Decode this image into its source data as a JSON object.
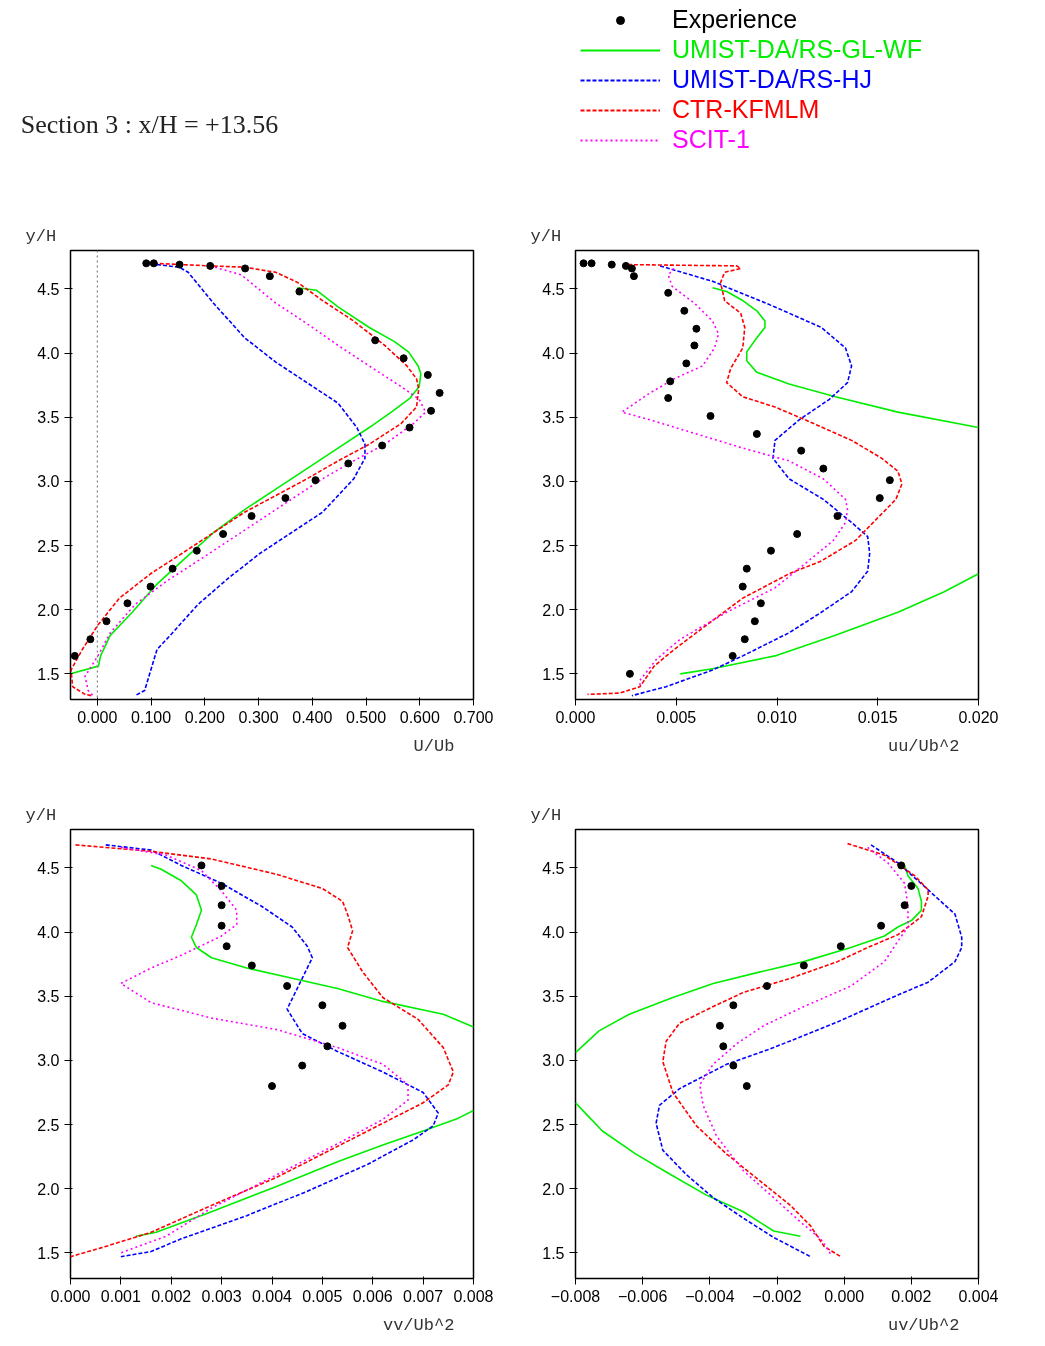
{
  "chart_data": [
    {
      "type": "line",
      "title": "Section 3 : x/H = +13.56",
      "legend": "top right",
      "ylabel": "y/H",
      "xlabel": "U/Ub",
      "xlim": [
        -0.05,
        0.7
      ],
      "ylim": [
        1.3,
        4.8
      ],
      "xticks": [
        {
          "value": 0,
          "label": "0.000"
        },
        {
          "value": 0.1,
          "label": "0.100"
        },
        {
          "value": 0.2,
          "label": "0.200"
        },
        {
          "value": 0.3,
          "label": "0.300"
        },
        {
          "value": 0.4,
          "label": "0.400"
        },
        {
          "value": 0.5,
          "label": "0.500"
        },
        {
          "value": 0.6,
          "label": "0.600"
        },
        {
          "value": 0.7,
          "label": "0.700"
        }
      ],
      "yticks": [
        1.5,
        {
          "value": 2,
          "label": "2.0"
        },
        2.5,
        {
          "value": 3,
          "label": "3.0"
        },
        3.5,
        {
          "value": 4,
          "label": "4.0"
        },
        4.5
      ],
      "ref_lines": [
        {
          "axis": "x",
          "value": 0,
          "color": "#808080",
          "line_style": "dotted"
        }
      ],
      "series": [
        {
          "name": "Experience",
          "type": "scatter",
          "marker": "circle",
          "color": "#000000",
          "x": [
            0.091,
            0.105,
            0.153,
            0.21,
            0.275,
            0.321,
            0.376,
            0.517,
            0.57,
            0.615,
            0.637,
            0.621,
            0.581,
            0.53,
            0.467,
            0.406,
            0.35,
            0.287,
            0.234,
            0.185,
            0.14,
            0.099,
            0.056,
            0.017,
            -0.013,
            -0.042
          ],
          "values": [
            4.7,
            4.7,
            4.69,
            4.68,
            4.66,
            4.6,
            4.48,
            4.1,
            3.96,
            3.83,
            3.69,
            3.55,
            3.42,
            3.28,
            3.14,
            3.01,
            2.87,
            2.73,
            2.59,
            2.46,
            2.32,
            2.18,
            2.05,
            1.91,
            1.77,
            1.64
          ]
        },
        {
          "name": "UMIST-DA/RS-GL-WF",
          "color": "#00ee00",
          "line_style": "solid",
          "x": [
            0.372,
            0.408,
            0.448,
            0.506,
            0.553,
            0.579,
            0.597,
            0.602,
            0.599,
            0.582,
            0.547,
            0.506,
            0.448,
            0.39,
            0.332,
            0.274,
            0.216,
            0.158,
            0.111,
            0.065,
            0.024,
            0.006,
            0.002,
            -0.05
          ],
          "values": [
            4.51,
            4.49,
            4.36,
            4.2,
            4.09,
            4.01,
            3.9,
            3.84,
            3.74,
            3.65,
            3.54,
            3.42,
            3.26,
            3.1,
            2.94,
            2.78,
            2.6,
            2.38,
            2.2,
            1.98,
            1.8,
            1.64,
            1.56,
            1.5
          ]
        },
        {
          "name": "UMIST-DA/RS-HJ",
          "color": "#0000ff",
          "line_style": "dashed",
          "x": [
            0.111,
            0.152,
            0.169,
            0.216,
            0.274,
            0.332,
            0.39,
            0.448,
            0.483,
            0.498,
            0.498,
            0.477,
            0.419,
            0.361,
            0.303,
            0.245,
            0.187,
            0.14,
            0.111,
            0.088,
            0.07
          ],
          "values": [
            4.69,
            4.67,
            4.63,
            4.39,
            4.12,
            3.93,
            3.77,
            3.61,
            3.42,
            3.29,
            3.18,
            3.02,
            2.76,
            2.6,
            2.44,
            2.25,
            2.04,
            1.82,
            1.69,
            1.37,
            1.33
          ]
        },
        {
          "name": "CTR-KFMLM",
          "color": "#ff0000",
          "line_style": "dashed",
          "x": [
            0.105,
            0.21,
            0.274,
            0.332,
            0.373,
            0.419,
            0.477,
            0.535,
            0.576,
            0.594,
            0.598,
            0.594,
            0.565,
            0.506,
            0.448,
            0.39,
            0.332,
            0.274,
            0.216,
            0.158,
            0.099,
            0.041,
            0.001,
            -0.028,
            -0.049,
            -0.046,
            -0.023,
            -0.011
          ],
          "values": [
            4.7,
            4.68,
            4.67,
            4.63,
            4.55,
            4.41,
            4.25,
            4.06,
            3.9,
            3.8,
            3.72,
            3.58,
            3.45,
            3.29,
            3.16,
            3.02,
            2.89,
            2.76,
            2.6,
            2.44,
            2.28,
            2.09,
            1.88,
            1.69,
            1.53,
            1.4,
            1.34,
            1.33
          ]
        },
        {
          "name": "SCIT-1",
          "color": "#ff00ff",
          "line_style": "dotted",
          "x": [
            0.21,
            0.268,
            0.332,
            0.39,
            0.448,
            0.506,
            0.565,
            0.599,
            0.611,
            0.588,
            0.535,
            0.477,
            0.419,
            0.361,
            0.303,
            0.245,
            0.187,
            0.128,
            0.07,
            0.024,
            0.001,
            -0.023,
            -0.017,
            -0.008
          ],
          "values": [
            4.68,
            4.61,
            4.39,
            4.23,
            4.06,
            3.9,
            3.74,
            3.64,
            3.54,
            3.45,
            3.29,
            3.16,
            3.02,
            2.86,
            2.7,
            2.54,
            2.38,
            2.22,
            2.04,
            1.82,
            1.64,
            1.48,
            1.37,
            1.33
          ]
        }
      ]
    },
    {
      "type": "line",
      "ylabel": "y/H",
      "xlabel": "uu/Ub^2",
      "xlim": [
        0,
        0.02
      ],
      "ylim": [
        1.3,
        4.8
      ],
      "xticks": [
        {
          "value": 0,
          "label": "0.000"
        },
        {
          "value": 0.005,
          "label": "0.005"
        },
        {
          "value": 0.01,
          "label": "0.010"
        },
        {
          "value": 0.015,
          "label": "0.015"
        },
        {
          "value": 0.02,
          "label": "0.020"
        }
      ],
      "yticks": [
        1.5,
        {
          "value": 2,
          "label": "2.0"
        },
        2.5,
        {
          "value": 3,
          "label": "3.0"
        },
        3.5,
        {
          "value": 4,
          "label": "4.0"
        },
        4.5
      ],
      "series": [
        {
          "type": "scatter",
          "marker": "circle",
          "color": "#000000",
          "x": [
            0.0004,
            0.0008,
            0.0018,
            0.0025,
            0.0028,
            0.0029,
            0.0046,
            0.0054,
            0.006,
            0.0059,
            0.0055,
            0.0047,
            0.0046,
            0.0067,
            0.009,
            0.0112,
            0.0123,
            0.0156,
            0.0151,
            0.013,
            0.011,
            0.0097,
            0.0085,
            0.0083,
            0.0092,
            0.0089,
            0.0084,
            0.0078,
            0.0027
          ],
          "values": [
            4.7,
            4.7,
            4.69,
            4.68,
            4.66,
            4.6,
            4.47,
            4.33,
            4.19,
            4.06,
            3.92,
            3.78,
            3.65,
            3.51,
            3.37,
            3.24,
            3.1,
            3.01,
            2.87,
            2.73,
            2.59,
            2.46,
            2.32,
            2.18,
            2.05,
            1.91,
            1.77,
            1.64,
            1.5
          ]
        },
        {
          "color": "#00ee00",
          "line_style": "solid",
          "x": [
            0.0068,
            0.0075,
            0.0083,
            0.009,
            0.0094,
            0.0094,
            0.009,
            0.0085,
            0.0085,
            0.009,
            0.0106,
            0.0129,
            0.016,
            0.02,
            null,
            0.02,
            0.0183,
            0.016,
            0.0129,
            0.0099,
            0.0068,
            0.0052
          ],
          "values": [
            4.51,
            4.48,
            4.41,
            4.33,
            4.25,
            4.2,
            4.12,
            4.01,
            3.94,
            3.85,
            3.76,
            3.66,
            3.54,
            3.42,
            null,
            2.28,
            2.14,
            1.98,
            1.8,
            1.64,
            1.54,
            1.5
          ]
        },
        {
          "color": "#0000ff",
          "line_style": "dashed",
          "x": [
            0.0042,
            0.0068,
            0.0099,
            0.0122,
            0.0134,
            0.0137,
            0.0135,
            0.0126,
            0.0111,
            0.0099,
            0.0098,
            0.0106,
            0.0123,
            0.0137,
            0.0145,
            0.0146,
            0.0145,
            0.0137,
            0.0122,
            0.0106,
            0.0083,
            0.0068,
            0.0045,
            0.0028
          ],
          "values": [
            4.68,
            4.56,
            4.36,
            4.2,
            4.04,
            3.9,
            3.77,
            3.64,
            3.48,
            3.32,
            3.18,
            3.02,
            2.86,
            2.68,
            2.57,
            2.44,
            2.3,
            2.14,
            1.98,
            1.82,
            1.64,
            1.53,
            1.4,
            1.33
          ]
        },
        {
          "color": "#ff0000",
          "line_style": "dashed",
          "x": [
            0.0026,
            0.008,
            0.0082,
            0.0074,
            0.0072,
            0.0074,
            0.0082,
            0.0084,
            0.0083,
            0.0077,
            0.0075,
            0.0083,
            0.0099,
            0.0114,
            0.0137,
            0.0152,
            0.016,
            0.0162,
            0.0159,
            0.0149,
            0.0139,
            0.0122,
            0.0106,
            0.0083,
            0.0065,
            0.0049,
            0.0039,
            0.0032,
            0.0022,
            0.0006
          ],
          "values": [
            4.69,
            4.68,
            4.66,
            4.63,
            4.55,
            4.41,
            4.31,
            4.2,
            4.04,
            3.88,
            3.77,
            3.66,
            3.58,
            3.48,
            3.32,
            3.18,
            3.08,
            2.98,
            2.86,
            2.7,
            2.54,
            2.38,
            2.28,
            2.09,
            1.88,
            1.69,
            1.56,
            1.4,
            1.35,
            1.34
          ]
        },
        {
          "color": "#ff00ff",
          "line_style": "dotted",
          "x": [
            0.0049,
            0.0046,
            0.0048,
            0.0059,
            0.0068,
            0.0071,
            0.0069,
            0.0063,
            0.0049,
            0.0037,
            0.0023,
            0.0037,
            0.006,
            0.0083,
            0.0106,
            0.0123,
            0.0134,
            0.0135,
            0.0134,
            0.0128,
            0.0114,
            0.0099,
            0.0075,
            0.0052,
            0.004,
            0.0032,
            0.0032
          ],
          "values": [
            4.66,
            4.61,
            4.52,
            4.39,
            4.25,
            4.15,
            4.04,
            3.9,
            3.8,
            3.69,
            3.54,
            3.48,
            3.37,
            3.26,
            3.16,
            3.02,
            2.86,
            2.78,
            2.68,
            2.54,
            2.36,
            2.17,
            1.98,
            1.77,
            1.61,
            1.45,
            1.4
          ]
        }
      ]
    },
    {
      "type": "line",
      "ylabel": "y/H",
      "xlabel": "vv/Ub^2",
      "xlim": [
        0,
        0.008
      ],
      "ylim": [
        1.3,
        4.8
      ],
      "xticks": [
        {
          "value": 0,
          "label": "0.000"
        },
        {
          "value": 0.001,
          "label": "0.001"
        },
        {
          "value": 0.002,
          "label": "0.002"
        },
        {
          "value": 0.003,
          "label": "0.003"
        },
        {
          "value": 0.004,
          "label": "0.004"
        },
        {
          "value": 0.005,
          "label": "0.005"
        },
        {
          "value": 0.006,
          "label": "0.006"
        },
        {
          "value": 0.007,
          "label": "0.007"
        },
        {
          "value": 0.008,
          "label": "0.008"
        }
      ],
      "yticks": [
        1.5,
        {
          "value": 2,
          "label": "2.0"
        },
        2.5,
        {
          "value": 3,
          "label": "3.0"
        },
        3.5,
        {
          "value": 4,
          "label": "4.0"
        },
        4.5
      ],
      "series": [
        {
          "type": "scatter",
          "marker": "circle",
          "color": "#000000",
          "x": [
            0.0026,
            0.003,
            0.003,
            0.003,
            0.0031,
            0.0036,
            0.0043,
            0.005,
            0.0054,
            0.0051,
            0.0046,
            0.004
          ],
          "values": [
            4.52,
            4.36,
            4.21,
            4.05,
            3.89,
            3.74,
            3.58,
            3.43,
            3.27,
            3.11,
            2.96,
            2.8
          ]
        },
        {
          "color": "#00ee00",
          "line_style": "solid",
          "x": [
            0.0016,
            0.0018,
            0.0022,
            0.0025,
            0.0026,
            0.0025,
            0.0024,
            0.0025,
            0.0028,
            0.0035,
            0.0044,
            0.0053,
            0.0062,
            0.0074,
            0.008,
            null,
            0.008,
            0.0077,
            0.007,
            0.0062,
            0.0053,
            0.0041,
            0.0028,
            0.0017,
            0.0013
          ],
          "values": [
            4.52,
            4.49,
            4.4,
            4.29,
            4.17,
            4.06,
            3.96,
            3.88,
            3.8,
            3.72,
            3.64,
            3.56,
            3.46,
            3.36,
            3.26,
            null,
            2.61,
            2.55,
            2.45,
            2.34,
            2.21,
            2.02,
            1.82,
            1.66,
            1.63
          ]
        },
        {
          "color": "#0000ff",
          "line_style": "dashed",
          "x": [
            0.0007,
            0.0016,
            0.0022,
            0.003,
            0.0038,
            0.0044,
            0.0047,
            0.0048,
            0.0046,
            0.0043,
            0.0046,
            0.0053,
            0.0062,
            0.007,
            0.0073,
            0.0072,
            0.0068,
            0.0059,
            0.0047,
            0.0035,
            0.0022,
            0.0016,
            0.001
          ],
          "values": [
            4.68,
            4.64,
            4.52,
            4.38,
            4.2,
            4.04,
            3.89,
            3.8,
            3.64,
            3.4,
            3.21,
            3.07,
            2.91,
            2.75,
            2.59,
            2.49,
            2.38,
            2.19,
            1.98,
            1.79,
            1.61,
            1.51,
            1.47
          ]
        },
        {
          "color": "#ff0000",
          "line_style": "dashed",
          "x": [
            0.0001,
            0.0016,
            0.0028,
            0.0041,
            0.005,
            0.0054,
            0.0055,
            0.0056,
            0.0055,
            0.0058,
            0.0062,
            0.0069,
            0.0074,
            0.0076,
            0.0075,
            0.007,
            0.0062,
            0.0053,
            0.0041,
            0.0028,
            0.0016,
            0.0007,
            0.0
          ],
          "values": [
            4.68,
            4.63,
            4.57,
            4.45,
            4.34,
            4.24,
            4.14,
            4.01,
            3.88,
            3.69,
            3.49,
            3.32,
            3.1,
            2.91,
            2.81,
            2.67,
            2.51,
            2.33,
            2.09,
            1.87,
            1.66,
            1.55,
            1.47
          ]
        },
        {
          "color": "#ff00ff",
          "line_style": "dotted",
          "x": [
            0.001,
            0.0019,
            0.0026,
            0.003,
            0.0033,
            0.0033,
            0.003,
            0.0022,
            0.0016,
            0.001,
            0.0016,
            0.0028,
            0.0041,
            0.0053,
            0.0062,
            0.0067,
            0.0067,
            0.0062,
            0.0053,
            0.0041,
            0.0028,
            0.0019,
            0.001
          ],
          "values": [
            4.66,
            4.6,
            4.48,
            4.32,
            4.17,
            4.06,
            3.97,
            3.82,
            3.72,
            3.6,
            3.45,
            3.33,
            3.24,
            3.1,
            2.97,
            2.81,
            2.69,
            2.54,
            2.35,
            2.11,
            1.85,
            1.63,
            1.5
          ]
        }
      ]
    },
    {
      "type": "line",
      "ylabel": "y/H",
      "xlabel": "uv/Ub^2",
      "xlim": [
        -0.008,
        0.004
      ],
      "ylim": [
        1.3,
        4.8
      ],
      "xticks": [
        {
          "value": -0.008,
          "label": "−0.008"
        },
        {
          "value": -0.006,
          "label": "−0.006"
        },
        {
          "value": -0.004,
          "label": "−0.004"
        },
        {
          "value": -0.002,
          "label": "−0.002"
        },
        {
          "value": 0,
          "label": "0.000"
        },
        {
          "value": 0.002,
          "label": "0.002"
        },
        {
          "value": 0.004,
          "label": "0.004"
        }
      ],
      "yticks": [
        1.5,
        {
          "value": 2,
          "label": "2.0"
        },
        2.5,
        {
          "value": 3,
          "label": "3.0"
        },
        3.5,
        {
          "value": 4,
          "label": "4.0"
        },
        4.5
      ],
      "series": [
        {
          "type": "scatter",
          "marker": "circle",
          "color": "#000000",
          "x": [
            0.0017,
            0.002,
            0.0018,
            0.0011,
            -0.0001,
            -0.0012,
            -0.0023,
            -0.0033,
            -0.0037,
            -0.0036,
            -0.0033,
            -0.0029
          ],
          "values": [
            4.52,
            4.36,
            4.21,
            4.05,
            3.89,
            3.74,
            3.58,
            3.43,
            3.27,
            3.11,
            2.96,
            2.8
          ]
        },
        {
          "color": "#00ee00",
          "line_style": "solid",
          "x": [
            0.0018,
            0.0019,
            0.0022,
            0.0023,
            0.0023,
            0.002,
            0.0016,
            0.0012,
            0.0002,
            -0.0012,
            -0.0025,
            -0.0039,
            -0.0051,
            -0.0064,
            -0.0073,
            -0.008,
            null,
            -0.008,
            -0.0076,
            -0.0072,
            -0.0062,
            -0.0053,
            -0.0041,
            -0.003,
            -0.0021,
            -0.0013
          ],
          "values": [
            4.52,
            4.44,
            4.34,
            4.24,
            4.17,
            4.09,
            4.04,
            3.97,
            3.88,
            3.77,
            3.69,
            3.6,
            3.49,
            3.36,
            3.23,
            3.06,
            null,
            2.67,
            2.56,
            2.45,
            2.27,
            2.13,
            1.95,
            1.82,
            1.67,
            1.63
          ]
        },
        {
          "color": "#0000ff",
          "line_style": "dashed",
          "x": [
            0.0008,
            0.0016,
            0.0025,
            0.0033,
            0.0035,
            0.0035,
            0.0033,
            0.0025,
            0.0016,
            -0.0002,
            -0.0021,
            -0.0035,
            -0.0049,
            -0.0055,
            -0.0056,
            -0.0054,
            -0.0047,
            -0.0039,
            -0.003,
            -0.0021,
            -0.001
          ],
          "values": [
            4.68,
            4.54,
            4.33,
            4.14,
            3.96,
            3.88,
            3.77,
            3.61,
            3.51,
            3.3,
            3.1,
            2.97,
            2.78,
            2.65,
            2.51,
            2.3,
            2.11,
            1.93,
            1.77,
            1.62,
            1.47
          ]
        },
        {
          "color": "#ff0000",
          "line_style": "dashed",
          "x": [
            0.0001,
            0.0012,
            0.0021,
            0.0025,
            0.0025,
            0.0023,
            0.0016,
            0.0007,
            -0.0002,
            -0.0016,
            -0.003,
            -0.0039,
            -0.0049,
            -0.0053,
            -0.0054,
            -0.0051,
            -0.0044,
            -0.0035,
            -0.0025,
            -0.0016,
            -0.001,
            -0.0006,
            -0.0001
          ],
          "values": [
            4.69,
            4.6,
            4.44,
            4.33,
            4.28,
            4.12,
            3.98,
            3.88,
            3.77,
            3.64,
            3.53,
            3.42,
            3.29,
            3.15,
            2.99,
            2.75,
            2.49,
            2.27,
            2.06,
            1.87,
            1.71,
            1.55,
            1.47
          ]
        },
        {
          "color": "#ff00ff",
          "line_style": "dotted",
          "x": [
            0.0007,
            0.0013,
            0.0018,
            0.0019,
            0.0019,
            0.0016,
            0.0012,
            0.0002,
            -0.0012,
            -0.0024,
            -0.0032,
            -0.0039,
            -0.0043,
            -0.0042,
            -0.0038,
            -0.003,
            -0.0021,
            -0.0013,
            -0.0007,
            -0.0004
          ],
          "values": [
            4.66,
            4.54,
            4.38,
            4.2,
            4.04,
            3.93,
            3.77,
            3.58,
            3.42,
            3.27,
            3.13,
            2.97,
            2.81,
            2.65,
            2.41,
            2.14,
            1.93,
            1.74,
            1.61,
            1.49
          ]
        }
      ]
    }
  ]
}
